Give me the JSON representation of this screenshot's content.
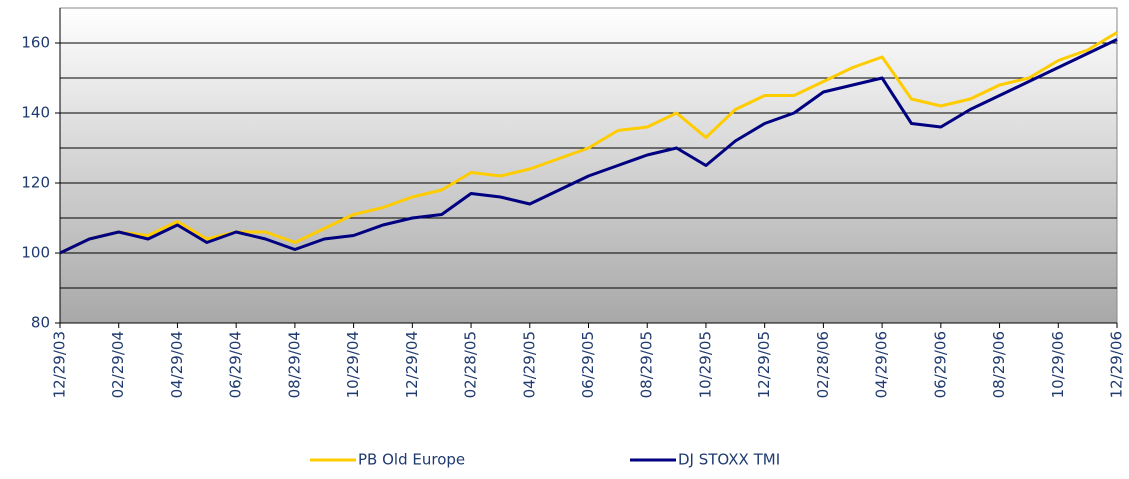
{
  "chart_data": {
    "type": "line",
    "x": [
      "12/29/03",
      "01/29/04",
      "02/29/04",
      "03/29/04",
      "04/29/04",
      "05/29/04",
      "06/29/04",
      "07/29/04",
      "08/29/04",
      "09/29/04",
      "10/29/04",
      "11/29/04",
      "12/29/04",
      "01/29/05",
      "02/28/05",
      "03/29/05",
      "04/29/05",
      "05/29/05",
      "06/29/05",
      "07/29/05",
      "08/29/05",
      "09/29/05",
      "10/29/05",
      "11/29/05",
      "12/29/05",
      "01/29/06",
      "02/28/06",
      "03/29/06",
      "04/29/06",
      "05/29/06",
      "06/29/06",
      "07/29/06",
      "08/29/06",
      "09/29/06",
      "10/29/06",
      "11/29/06",
      "12/29/06"
    ],
    "xticks": [
      "12/29/03",
      "02/29/04",
      "04/29/04",
      "06/29/04",
      "08/29/04",
      "10/29/04",
      "12/29/04",
      "02/28/05",
      "04/29/05",
      "06/29/05",
      "08/29/05",
      "10/29/05",
      "12/29/05",
      "02/28/06",
      "04/29/06",
      "06/29/06",
      "08/29/06",
      "10/29/06",
      "12/29/06"
    ],
    "series": [
      {
        "name": "PB Old Europe",
        "color": "#ffcc00",
        "values": [
          100,
          104,
          106,
          105,
          109,
          104,
          106,
          106,
          103,
          107,
          111,
          113,
          116,
          118,
          123,
          122,
          124,
          127,
          130,
          135,
          136,
          140,
          133,
          141,
          145,
          145,
          149,
          153,
          156,
          144,
          142,
          144,
          148,
          150,
          155,
          158,
          163
        ]
      },
      {
        "name": "DJ STOXX TMI",
        "color": "#000080",
        "values": [
          100,
          104,
          106,
          104,
          108,
          103,
          106,
          104,
          101,
          104,
          105,
          108,
          110,
          111,
          117,
          116,
          114,
          118,
          122,
          125,
          128,
          130,
          125,
          132,
          137,
          140,
          146,
          148,
          150,
          137,
          136,
          141,
          145,
          149,
          153,
          157,
          161
        ]
      }
    ],
    "ylim": [
      80,
      170
    ],
    "yticks": [
      80,
      100,
      120,
      140,
      160
    ],
    "minor_yticks": [
      90,
      110,
      130,
      150
    ],
    "grid": true
  }
}
